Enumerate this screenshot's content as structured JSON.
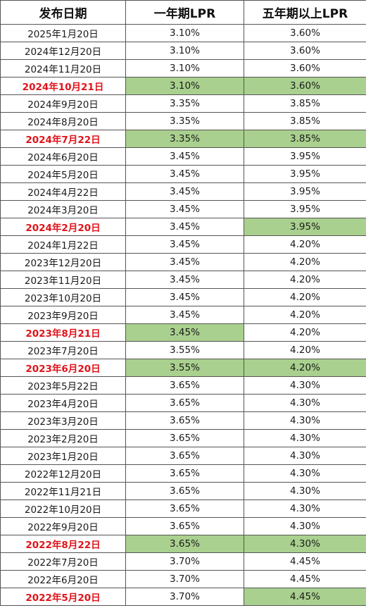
{
  "headers": [
    "发布日期",
    "一年期LPR",
    "五年期以上LPR"
  ],
  "rows": [
    {
      "date": "2025年1月20日",
      "lpr1": "3.10%",
      "lpr5": "3.60%",
      "date_red": false,
      "lpr1_green": false,
      "lpr5_green": false
    },
    {
      "date": "2024年12月20日",
      "lpr1": "3.10%",
      "lpr5": "3.60%",
      "date_red": false,
      "lpr1_green": false,
      "lpr5_green": false
    },
    {
      "date": "2024年11月20日",
      "lpr1": "3.10%",
      "lpr5": "3.60%",
      "date_red": false,
      "lpr1_green": false,
      "lpr5_green": false
    },
    {
      "date": "2024年10月21日",
      "lpr1": "3.10%",
      "lpr5": "3.60%",
      "date_red": true,
      "lpr1_green": true,
      "lpr5_green": true
    },
    {
      "date": "2024年9月20日",
      "lpr1": "3.35%",
      "lpr5": "3.85%",
      "date_red": false,
      "lpr1_green": false,
      "lpr5_green": false
    },
    {
      "date": "2024年8月20日",
      "lpr1": "3.35%",
      "lpr5": "3.85%",
      "date_red": false,
      "lpr1_green": false,
      "lpr5_green": false
    },
    {
      "date": "2024年7月22日",
      "lpr1": "3.35%",
      "lpr5": "3.85%",
      "date_red": true,
      "lpr1_green": true,
      "lpr5_green": true
    },
    {
      "date": "2024年6月20日",
      "lpr1": "3.45%",
      "lpr5": "3.95%",
      "date_red": false,
      "lpr1_green": false,
      "lpr5_green": false
    },
    {
      "date": "2024年5月20日",
      "lpr1": "3.45%",
      "lpr5": "3.95%",
      "date_red": false,
      "lpr1_green": false,
      "lpr5_green": false
    },
    {
      "date": "2024年4月22日",
      "lpr1": "3.45%",
      "lpr5": "3.95%",
      "date_red": false,
      "lpr1_green": false,
      "lpr5_green": false
    },
    {
      "date": "2024年3月20日",
      "lpr1": "3.45%",
      "lpr5": "3.95%",
      "date_red": false,
      "lpr1_green": false,
      "lpr5_green": false
    },
    {
      "date": "2024年2月20日",
      "lpr1": "3.45%",
      "lpr5": "3.95%",
      "date_red": true,
      "lpr1_green": false,
      "lpr5_green": true
    },
    {
      "date": "2024年1月22日",
      "lpr1": "3.45%",
      "lpr5": "4.20%",
      "date_red": false,
      "lpr1_green": false,
      "lpr5_green": false
    },
    {
      "date": "2023年12月20日",
      "lpr1": "3.45%",
      "lpr5": "4.20%",
      "date_red": false,
      "lpr1_green": false,
      "lpr5_green": false
    },
    {
      "date": "2023年11月20日",
      "lpr1": "3.45%",
      "lpr5": "4.20%",
      "date_red": false,
      "lpr1_green": false,
      "lpr5_green": false
    },
    {
      "date": "2023年10月20日",
      "lpr1": "3.45%",
      "lpr5": "4.20%",
      "date_red": false,
      "lpr1_green": false,
      "lpr5_green": false
    },
    {
      "date": "2023年9月20日",
      "lpr1": "3.45%",
      "lpr5": "4.20%",
      "date_red": false,
      "lpr1_green": false,
      "lpr5_green": false
    },
    {
      "date": "2023年8月21日",
      "lpr1": "3.45%",
      "lpr5": "4.20%",
      "date_red": true,
      "lpr1_green": true,
      "lpr5_green": false
    },
    {
      "date": "2023年7月20日",
      "lpr1": "3.55%",
      "lpr5": "4.20%",
      "date_red": false,
      "lpr1_green": false,
      "lpr5_green": false
    },
    {
      "date": "2023年6月20日",
      "lpr1": "3.55%",
      "lpr5": "4.20%",
      "date_red": true,
      "lpr1_green": true,
      "lpr5_green": true
    },
    {
      "date": "2023年5月22日",
      "lpr1": "3.65%",
      "lpr5": "4.30%",
      "date_red": false,
      "lpr1_green": false,
      "lpr5_green": false
    },
    {
      "date": "2023年4月20日",
      "lpr1": "3.65%",
      "lpr5": "4.30%",
      "date_red": false,
      "lpr1_green": false,
      "lpr5_green": false
    },
    {
      "date": "2023年3月20日",
      "lpr1": "3.65%",
      "lpr5": "4.30%",
      "date_red": false,
      "lpr1_green": false,
      "lpr5_green": false
    },
    {
      "date": "2023年2月20日",
      "lpr1": "3.65%",
      "lpr5": "4.30%",
      "date_red": false,
      "lpr1_green": false,
      "lpr5_green": false
    },
    {
      "date": "2023年1月20日",
      "lpr1": "3.65%",
      "lpr5": "4.30%",
      "date_red": false,
      "lpr1_green": false,
      "lpr5_green": false
    },
    {
      "date": "2022年12月20日",
      "lpr1": "3.65%",
      "lpr5": "4.30%",
      "date_red": false,
      "lpr1_green": false,
      "lpr5_green": false
    },
    {
      "date": "2022年11月21日",
      "lpr1": "3.65%",
      "lpr5": "4.30%",
      "date_red": false,
      "lpr1_green": false,
      "lpr5_green": false
    },
    {
      "date": "2022年10月20日",
      "lpr1": "3.65%",
      "lpr5": "4.30%",
      "date_red": false,
      "lpr1_green": false,
      "lpr5_green": false
    },
    {
      "date": "2022年9月20日",
      "lpr1": "3.65%",
      "lpr5": "4.30%",
      "date_red": false,
      "lpr1_green": false,
      "lpr5_green": false
    },
    {
      "date": "2022年8月22日",
      "lpr1": "3.65%",
      "lpr5": "4.30%",
      "date_red": true,
      "lpr1_green": true,
      "lpr5_green": true
    },
    {
      "date": "2022年7月20日",
      "lpr1": "3.70%",
      "lpr5": "4.45%",
      "date_red": false,
      "lpr1_green": false,
      "lpr5_green": false
    },
    {
      "date": "2022年6月20日",
      "lpr1": "3.70%",
      "lpr5": "4.45%",
      "date_red": false,
      "lpr1_green": false,
      "lpr5_green": false
    },
    {
      "date": "2022年5月20日",
      "lpr1": "3.70%",
      "lpr5": "4.45%",
      "date_red": true,
      "lpr1_green": false,
      "lpr5_green": true
    }
  ],
  "colors": {
    "highlight_green": "#a9d08e",
    "change_date_red": "#e0141b"
  }
}
